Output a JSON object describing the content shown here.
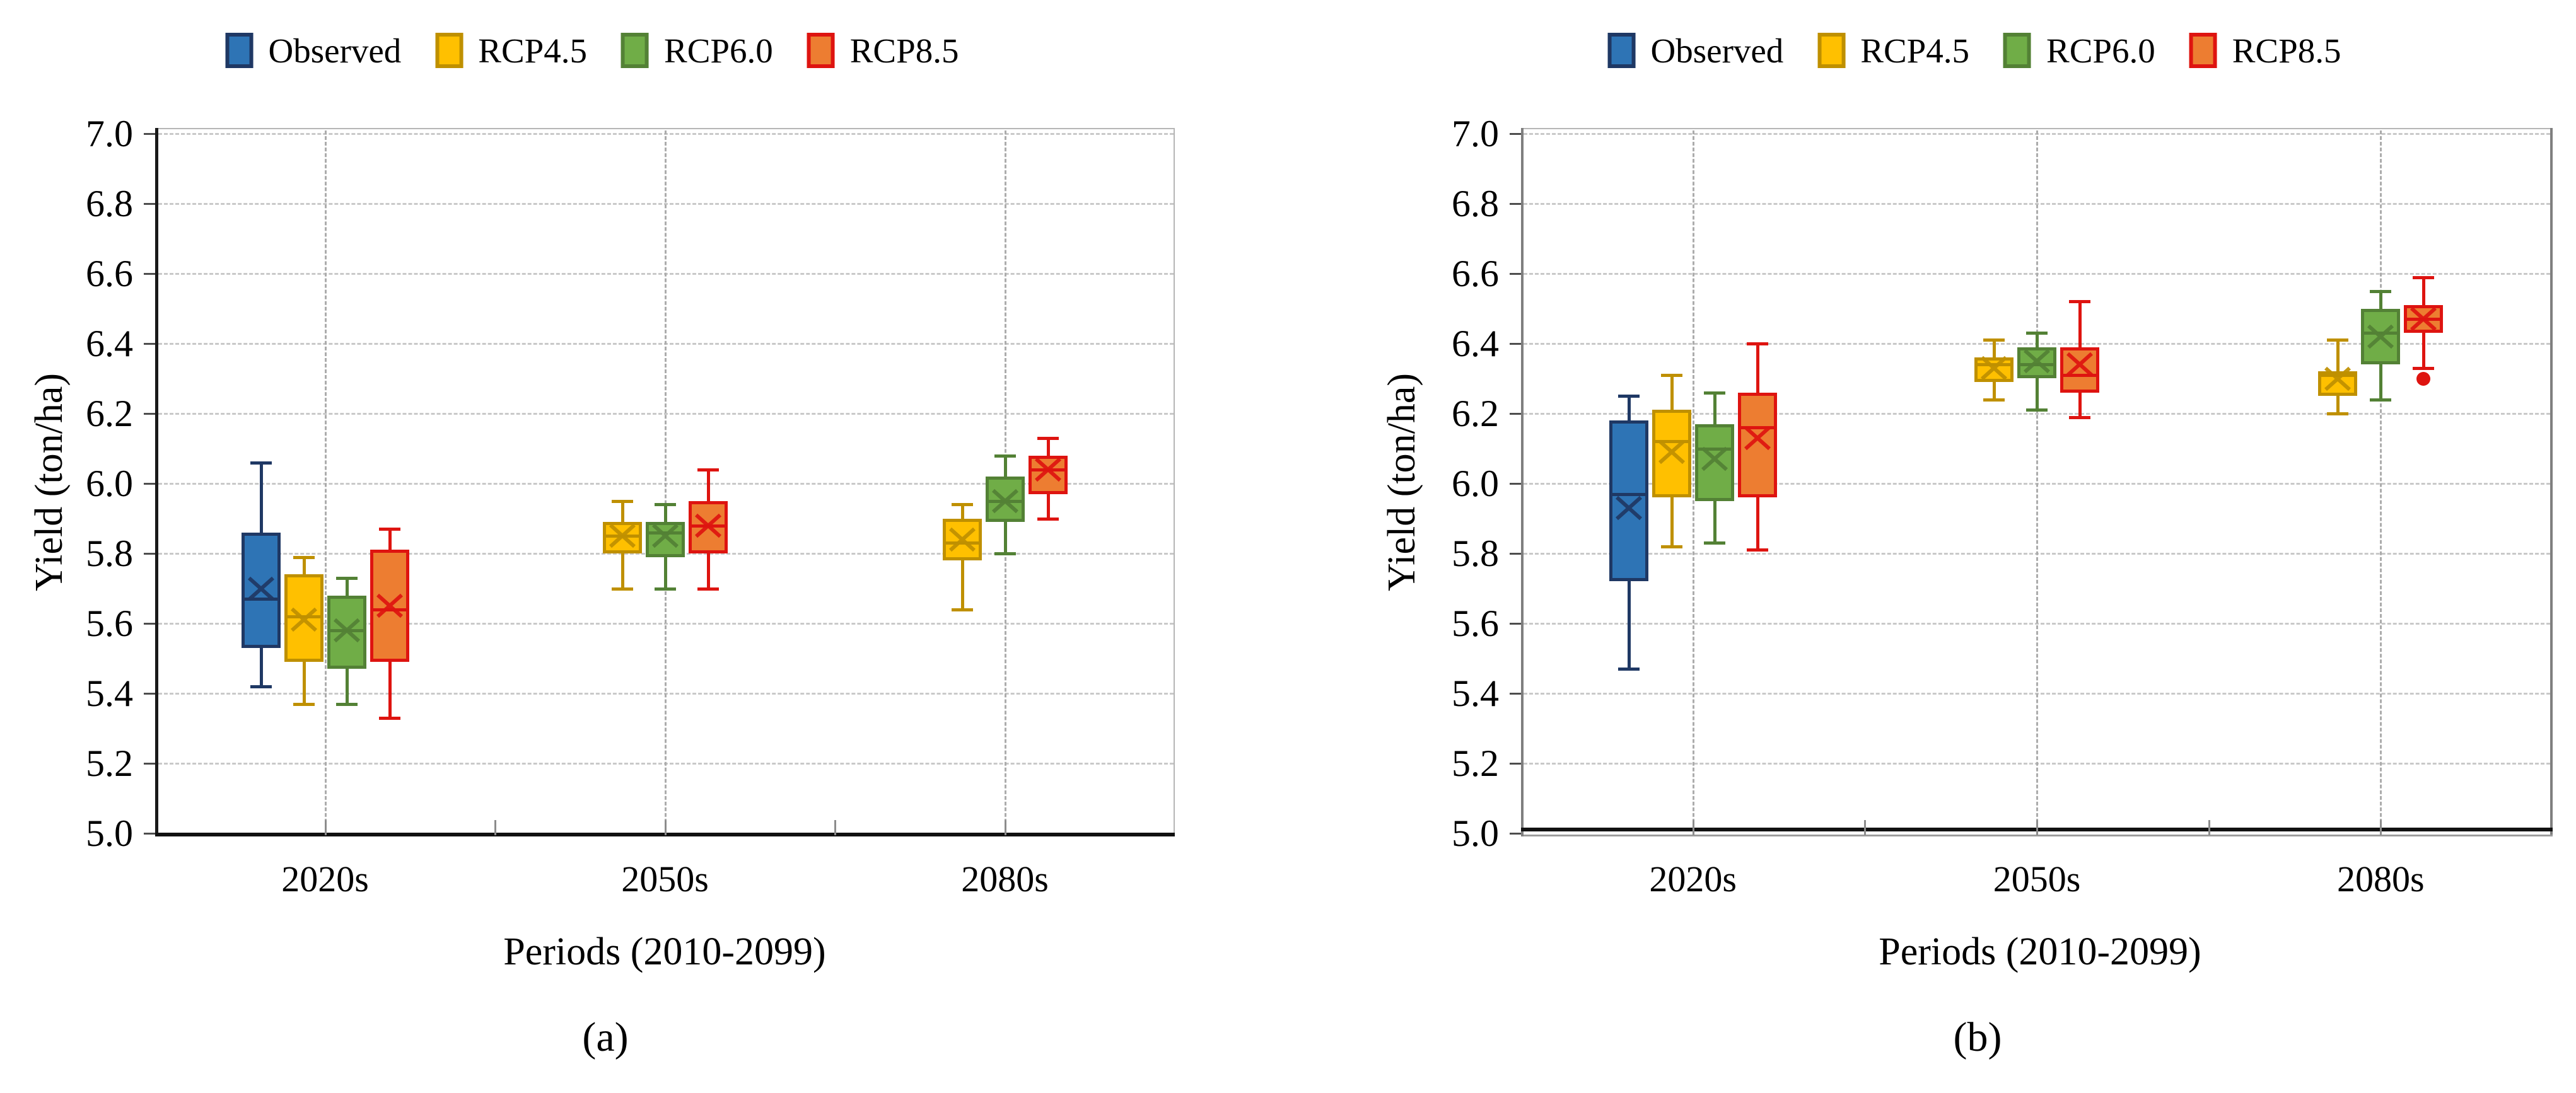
{
  "figure": {
    "background": "#ffffff",
    "panels": [
      "(a)",
      "(b)"
    ]
  },
  "series": [
    {
      "name": "Observed",
      "fill": "#2E74B5",
      "line": "#1F3864"
    },
    {
      "name": "RCP4.5",
      "fill": "#FFC000",
      "line": "#BF9000"
    },
    {
      "name": "RCP6.0",
      "fill": "#70AD47",
      "line": "#538135"
    },
    {
      "name": "RCP8.5",
      "fill": "#ED7D31",
      "line": "#DE1410"
    }
  ],
  "chart_data": [
    {
      "type": "box",
      "caption": "(a)",
      "xlabel": "Periods (2010-2099)",
      "ylabel": "Yield (ton/ha)",
      "ylim": [
        5.0,
        7.0
      ],
      "ytick_step": 0.2,
      "ytick_labels": [
        "7.0",
        "6.8",
        "6.6",
        "6.4",
        "6.2",
        "6.0",
        "5.8",
        "5.6",
        "5.4",
        "5.2",
        "5.0"
      ],
      "categories": [
        "2020s",
        "2050s",
        "2080s"
      ],
      "legend": [
        "Observed",
        "RCP4.5",
        "RCP6.0",
        "RCP8.5"
      ],
      "grid": "dashed",
      "legend_position": "top-center",
      "boxes": [
        {
          "category": "2020s",
          "series": "Observed",
          "low": 5.42,
          "q1": 5.53,
          "median": 5.67,
          "mean": 5.7,
          "q3": 5.86,
          "high": 6.06
        },
        {
          "category": "2020s",
          "series": "RCP4.5",
          "low": 5.37,
          "q1": 5.49,
          "median": 5.62,
          "mean": 5.61,
          "q3": 5.74,
          "high": 5.79
        },
        {
          "category": "2020s",
          "series": "RCP6.0",
          "low": 5.37,
          "q1": 5.47,
          "median": 5.58,
          "mean": 5.58,
          "q3": 5.68,
          "high": 5.73
        },
        {
          "category": "2020s",
          "series": "RCP8.5",
          "low": 5.33,
          "q1": 5.49,
          "median": 5.64,
          "mean": 5.65,
          "q3": 5.81,
          "high": 5.87
        },
        {
          "category": "2050s",
          "series": "RCP4.5",
          "low": 5.7,
          "q1": 5.8,
          "median": 5.85,
          "mean": 5.85,
          "q3": 5.89,
          "high": 5.95
        },
        {
          "category": "2050s",
          "series": "RCP6.0",
          "low": 5.7,
          "q1": 5.79,
          "median": 5.86,
          "mean": 5.85,
          "q3": 5.89,
          "high": 5.94
        },
        {
          "category": "2050s",
          "series": "RCP8.5",
          "low": 5.7,
          "q1": 5.8,
          "median": 5.88,
          "mean": 5.88,
          "q3": 5.95,
          "high": 6.04
        },
        {
          "category": "2080s",
          "series": "RCP4.5",
          "low": 5.64,
          "q1": 5.78,
          "median": 5.83,
          "mean": 5.84,
          "q3": 5.9,
          "high": 5.94
        },
        {
          "category": "2080s",
          "series": "RCP6.0",
          "low": 5.8,
          "q1": 5.89,
          "median": 5.95,
          "mean": 5.95,
          "q3": 6.02,
          "high": 6.08
        },
        {
          "category": "2080s",
          "series": "RCP8.5",
          "low": 5.9,
          "q1": 5.97,
          "median": 6.04,
          "mean": 6.04,
          "q3": 6.08,
          "high": 6.13
        }
      ]
    },
    {
      "type": "box",
      "caption": "(b)",
      "xlabel": "Periods (2010-2099)",
      "ylabel": "Yield (ton/ha)",
      "ylim": [
        5.0,
        7.0
      ],
      "ytick_step": 0.2,
      "ytick_labels": [
        "7.0",
        "6.8",
        "6.6",
        "6.4",
        "6.2",
        "6.0",
        "5.8",
        "5.6",
        "5.4",
        "5.2",
        "5.0"
      ],
      "categories": [
        "2020s",
        "2050s",
        "2080s"
      ],
      "legend": [
        "Observed",
        "RCP4.5",
        "RCP6.0",
        "RCP8.5"
      ],
      "grid": "dashed",
      "legend_position": "top-center",
      "baseline_bar": true,
      "boxes": [
        {
          "category": "2020s",
          "series": "Observed",
          "low": 5.47,
          "q1": 5.72,
          "median": 5.97,
          "mean": 5.93,
          "q3": 6.18,
          "high": 6.25
        },
        {
          "category": "2020s",
          "series": "RCP4.5",
          "low": 5.82,
          "q1": 5.96,
          "median": 6.12,
          "mean": 6.09,
          "q3": 6.21,
          "high": 6.31
        },
        {
          "category": "2020s",
          "series": "RCP6.0",
          "low": 5.83,
          "q1": 5.95,
          "median": 6.1,
          "mean": 6.07,
          "q3": 6.17,
          "high": 6.26
        },
        {
          "category": "2020s",
          "series": "RCP8.5",
          "low": 5.81,
          "q1": 5.96,
          "median": 6.16,
          "mean": 6.13,
          "q3": 6.26,
          "high": 6.4
        },
        {
          "category": "2050s",
          "series": "RCP4.5",
          "low": 6.24,
          "q1": 6.29,
          "median": 6.34,
          "mean": 6.33,
          "q3": 6.36,
          "high": 6.41
        },
        {
          "category": "2050s",
          "series": "RCP6.0",
          "low": 6.21,
          "q1": 6.3,
          "median": 6.34,
          "mean": 6.35,
          "q3": 6.39,
          "high": 6.43
        },
        {
          "category": "2050s",
          "series": "RCP8.5",
          "low": 6.19,
          "q1": 6.26,
          "median": 6.31,
          "mean": 6.34,
          "q3": 6.39,
          "high": 6.52
        },
        {
          "category": "2080s",
          "series": "RCP4.5",
          "low": 6.2,
          "q1": 6.25,
          "median": 6.31,
          "mean": 6.3,
          "q3": 6.32,
          "high": 6.41
        },
        {
          "category": "2080s",
          "series": "RCP6.0",
          "low": 6.24,
          "q1": 6.34,
          "median": 6.43,
          "mean": 6.42,
          "q3": 6.5,
          "high": 6.55
        },
        {
          "category": "2080s",
          "series": "RCP8.5",
          "low": 6.33,
          "q1": 6.43,
          "median": 6.47,
          "mean": 6.47,
          "q3": 6.51,
          "high": 6.59,
          "outliers": [
            6.3
          ]
        }
      ]
    }
  ]
}
